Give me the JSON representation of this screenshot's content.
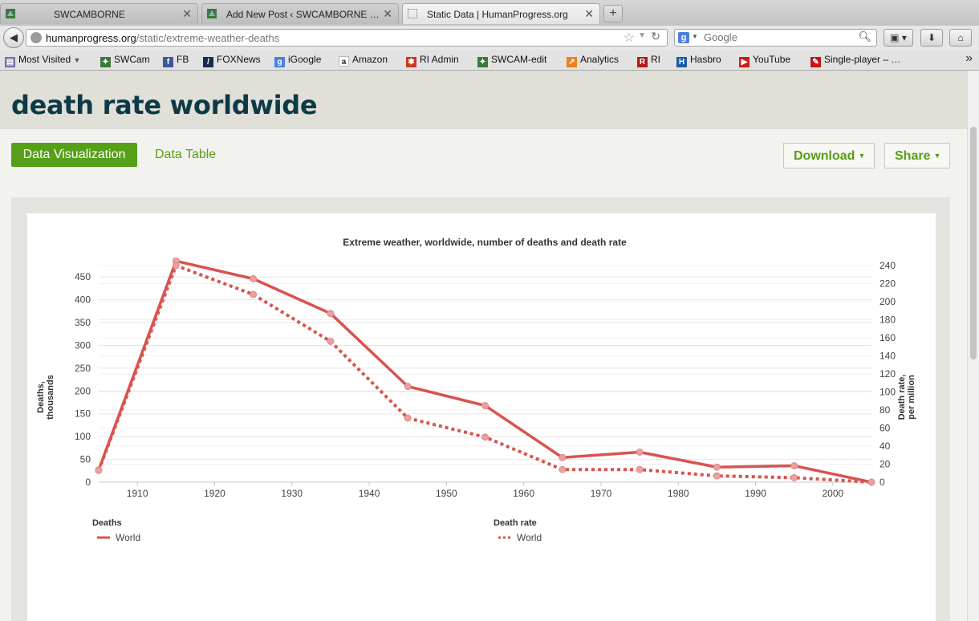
{
  "browser": {
    "tabs": [
      {
        "title": "SWCAMBORNE",
        "active": false
      },
      {
        "title": "Add New Post ‹ SWCAMBORNE …",
        "active": false
      },
      {
        "title": "Static Data | HumanProgress.org",
        "active": true
      }
    ],
    "new_tab_label": "+",
    "close_label": "✕",
    "url_domain": "humanprogress.org",
    "url_path": "/static/extreme-weather-deaths",
    "search_placeholder": "Google",
    "bookmarks": [
      {
        "label": "Most Visited",
        "icon": "most-visited-icon",
        "color": "#7a6aa8"
      },
      {
        "label": "SWCam",
        "icon": "swcam-icon",
        "color": "#3b7a3b"
      },
      {
        "label": "FB",
        "icon": "facebook-icon",
        "color": "#3b5998"
      },
      {
        "label": "FOXNews",
        "icon": "foxnews-icon",
        "color": "#1b2a52"
      },
      {
        "label": "iGoogle",
        "icon": "igoogle-icon",
        "color": "#4a7fe0"
      },
      {
        "label": "Amazon",
        "icon": "amazon-icon",
        "color": "#222222"
      },
      {
        "label": "RI Admin",
        "icon": "joomla-icon",
        "color": "#c53a1a"
      },
      {
        "label": "SWCAM-edit",
        "icon": "swcam-edit-icon",
        "color": "#3b7a3b"
      },
      {
        "label": "Analytics",
        "icon": "analytics-icon",
        "color": "#e8831d"
      },
      {
        "label": "RI",
        "icon": "ri-icon",
        "color": "#b01c1c"
      },
      {
        "label": "Hasbro",
        "icon": "hasbro-icon",
        "color": "#1c5aa8"
      },
      {
        "label": "YouTube",
        "icon": "youtube-icon",
        "color": "#d21a1a"
      },
      {
        "label": "Single-player – …",
        "icon": "single-player-icon",
        "color": "#c21818"
      }
    ]
  },
  "page": {
    "title": "death rate worldwide",
    "tabs": [
      {
        "label": "Data Visualization",
        "active": true
      },
      {
        "label": "Data Table",
        "active": false
      }
    ],
    "download_label": "Download",
    "share_label": "Share",
    "accent_color": "#55a016",
    "title_color": "#0d3a46"
  },
  "chart_data": {
    "type": "line",
    "title": "Extreme weather, worldwide, number of deaths and death rate",
    "x": [
      1905,
      1915,
      1925,
      1935,
      1945,
      1955,
      1965,
      1975,
      1985,
      1995,
      2005
    ],
    "xticks": [
      1910,
      1920,
      1930,
      1940,
      1950,
      1960,
      1970,
      1980,
      1990,
      2000
    ],
    "xlim": [
      1905,
      2005
    ],
    "ylabel_left": "Deaths, thousands",
    "ylabel_right": "Death rate, per million",
    "ylim_left": [
      0,
      475
    ],
    "ylim_right": [
      0,
      240
    ],
    "yticks_left": [
      0,
      50,
      100,
      150,
      200,
      250,
      300,
      350,
      400,
      450
    ],
    "yticks_right": [
      0,
      20,
      40,
      60,
      80,
      100,
      120,
      140,
      160,
      180,
      200,
      220,
      240
    ],
    "grid": true,
    "legend_position": "bottom",
    "series": [
      {
        "group": "Deaths",
        "name": "World",
        "axis": "left",
        "style": "solid",
        "color": "#d9534f",
        "values": [
          27,
          485,
          446,
          370,
          210,
          168,
          54,
          66,
          33,
          36,
          0
        ]
      },
      {
        "group": "Death rate",
        "name": "World",
        "axis": "right",
        "style": "dotted",
        "color": "#d9534f",
        "values": [
          13,
          240,
          208,
          156,
          71,
          50,
          14,
          14,
          7,
          5,
          0
        ]
      }
    ]
  }
}
